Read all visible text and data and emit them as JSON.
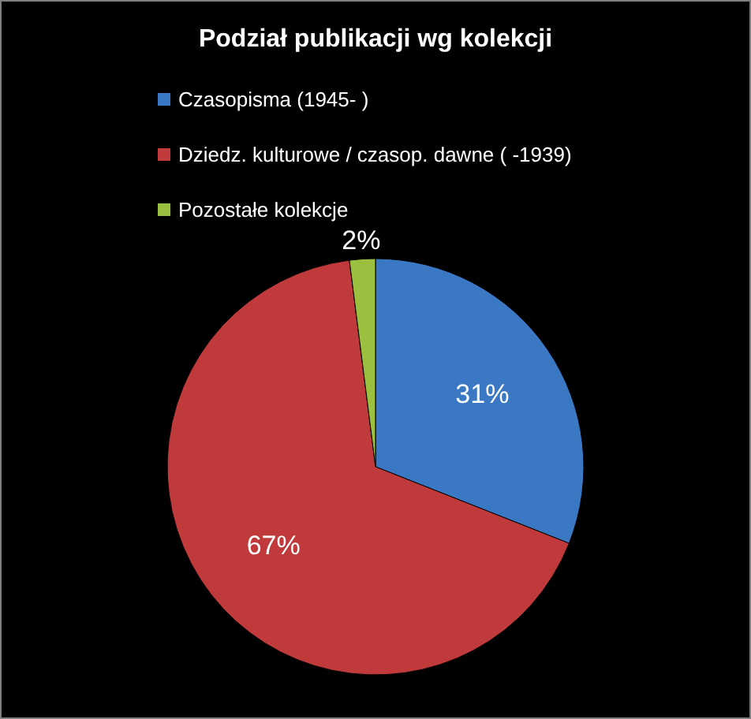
{
  "chart_data": {
    "type": "pie",
    "title": "Podział publikacji wg kolekcji",
    "categories": [
      "Czasopisma (1945- )",
      "Dziedz. kulturowe / czasop. dawne ( -1939)",
      "Pozostałe kolekcje"
    ],
    "values": [
      31,
      67,
      2
    ],
    "colors": [
      "#3a78c4",
      "#c0393b",
      "#9bc040"
    ],
    "value_labels": [
      "31%",
      "67%",
      "2%"
    ],
    "legend": "top left"
  }
}
